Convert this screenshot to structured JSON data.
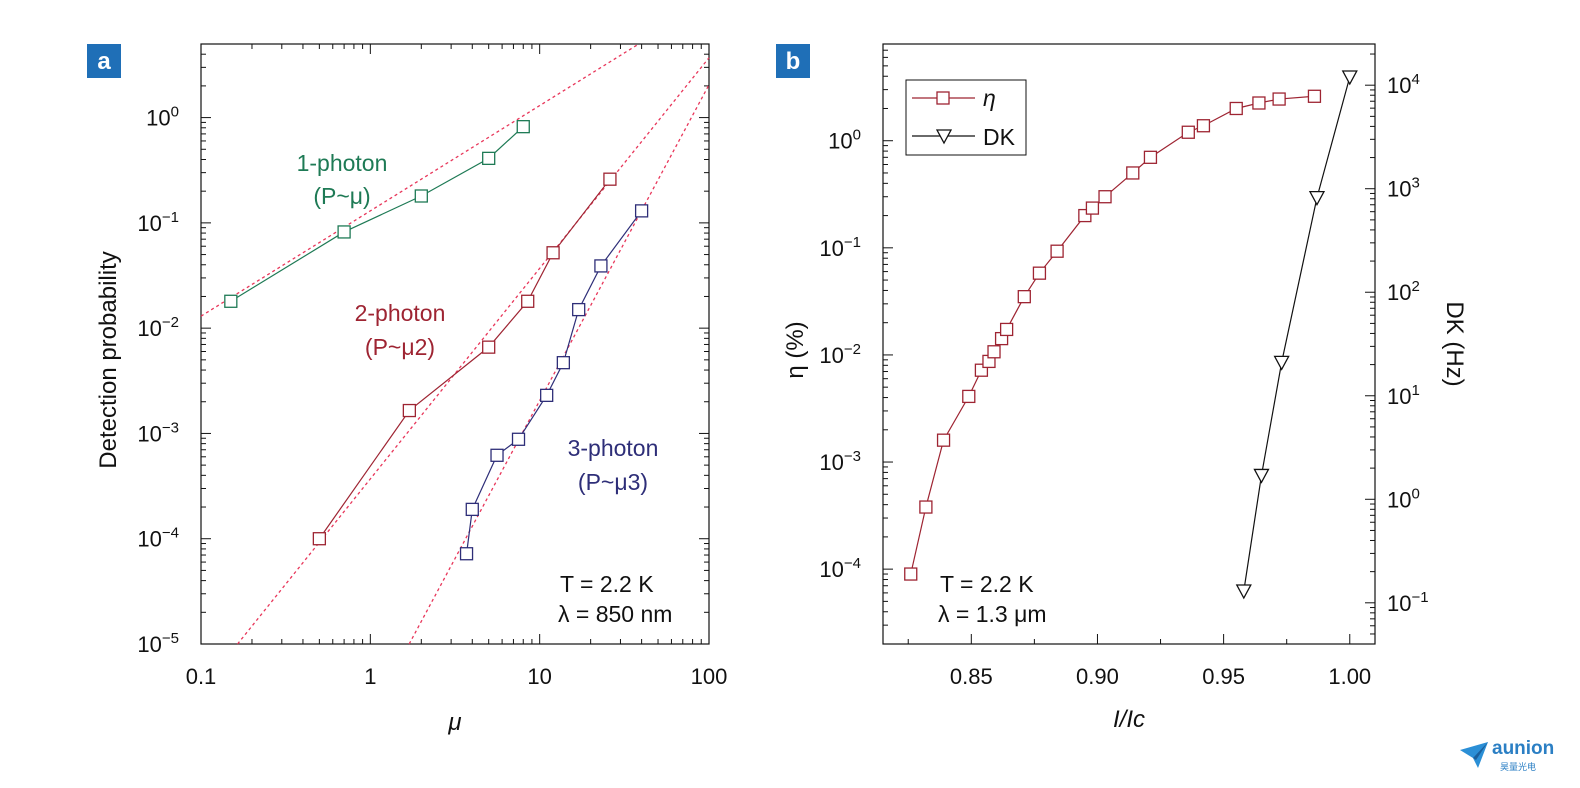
{
  "panels": {
    "a": {
      "label": "a"
    },
    "b": {
      "label": "b"
    }
  },
  "logo": {
    "text": "aunion",
    "subtext": "昊量光电"
  },
  "chart_data": [
    {
      "id": "a",
      "type": "scatter",
      "xscale": "log",
      "yscale": "log",
      "xlabel": "μ",
      "ylabel": "Detection probability",
      "xlim": [
        0.1,
        100
      ],
      "ylim": [
        1e-05,
        5
      ],
      "xticks": [
        0.1,
        1,
        10,
        100
      ],
      "xtick_labels": [
        "0.1",
        "1",
        "10",
        "100"
      ],
      "ytick_exponents": [
        0,
        -1,
        -2,
        -3,
        -4,
        -5
      ],
      "annotations": {
        "temperature": "T = 2.2 K",
        "wavelength": "λ = 850 nm"
      },
      "series": [
        {
          "name": "1-photon",
          "fit_label": "(P~μ)",
          "color": "#1e7a55",
          "x": [
            0.15,
            0.7,
            2.0,
            5.0,
            8.0
          ],
          "y": [
            0.018,
            0.082,
            0.18,
            0.41,
            0.82
          ],
          "fit_slope": 1,
          "fit_prefactor": 0.13
        },
        {
          "name": "2-photon",
          "fit_label": "(P~μ2)",
          "color": "#9e2432",
          "x": [
            0.5,
            1.7,
            5.0,
            8.5,
            12.0,
            26.0
          ],
          "y": [
            0.0001,
            0.00165,
            0.0066,
            0.018,
            0.052,
            0.26
          ],
          "fit_slope": 2,
          "fit_prefactor": 0.00037
        },
        {
          "name": "3-photon",
          "fit_label": "(P~μ3)",
          "color": "#2e2e78",
          "x": [
            3.7,
            4.0,
            5.6,
            7.5,
            11.0,
            13.8,
            17.0,
            23.0,
            40.0
          ],
          "y": [
            7.2e-05,
            0.00019,
            0.00062,
            0.00088,
            0.0023,
            0.0047,
            0.015,
            0.039,
            0.13
          ],
          "fit_slope": 3,
          "fit_prefactor": 2.05e-06
        }
      ],
      "fit_line_color": "#e8365a"
    },
    {
      "id": "b",
      "type": "line",
      "xscale": "linear",
      "xlabel": "I/Ic",
      "ylabel_left": "η (%)",
      "ylabel_right": "DK (Hz)",
      "xlim": [
        0.815,
        1.01
      ],
      "xticks": [
        0.85,
        0.9,
        0.95,
        1.0
      ],
      "xtick_labels": [
        "0.85",
        "0.90",
        "0.95",
        "1.00"
      ],
      "ylim_left": [
        2e-05,
        8
      ],
      "yticks_left_exponents": [
        0,
        -1,
        -2,
        -3,
        -4
      ],
      "ylim_right": [
        0.04,
        25000
      ],
      "yticks_right_exponents": [
        4,
        3,
        2,
        1,
        0,
        -1
      ],
      "legend_position": "top-left",
      "annotations": {
        "temperature": "T = 2.2 K",
        "wavelength": "λ = 1.3 μm"
      },
      "series": [
        {
          "name": "η",
          "axis": "left",
          "marker": "square",
          "color": "#9e2432",
          "x": [
            0.826,
            0.832,
            0.839,
            0.849,
            0.854,
            0.857,
            0.859,
            0.862,
            0.864,
            0.871,
            0.877,
            0.884,
            0.895,
            0.898,
            0.903,
            0.914,
            0.921,
            0.936,
            0.942,
            0.955,
            0.964,
            0.972,
            0.986
          ],
          "y": [
            9e-05,
            0.00038,
            0.0016,
            0.0041,
            0.0072,
            0.0087,
            0.0107,
            0.0142,
            0.0173,
            0.035,
            0.058,
            0.093,
            0.2,
            0.235,
            0.3,
            0.5,
            0.7,
            1.2,
            1.38,
            2.0,
            2.25,
            2.45,
            2.6
          ]
        },
        {
          "name": "DK",
          "axis": "right",
          "marker": "triangle-down",
          "color": "#111111",
          "x": [
            0.958,
            0.965,
            0.973,
            0.987,
            1.0
          ],
          "y": [
            0.13,
            1.7,
            21.0,
            820.0,
            12000.0
          ]
        }
      ]
    }
  ]
}
